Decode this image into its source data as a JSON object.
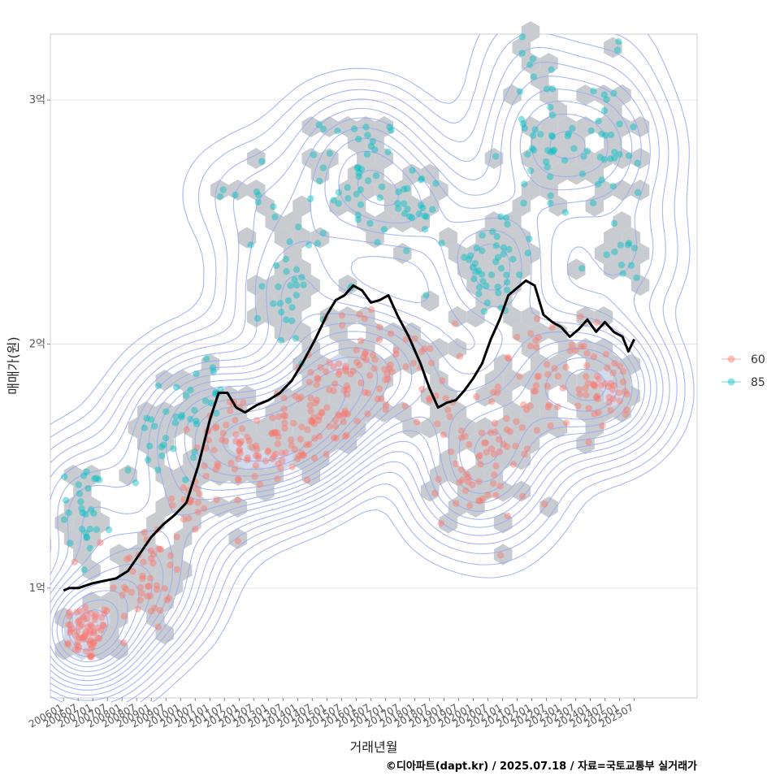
{
  "chart_data": {
    "type": "scatter",
    "xlabel": "거래년월",
    "ylabel": "매매가(원)",
    "caption": "©디아파트(dapt.kr) / 2025.07.18 / 자료=국토교통부 실거래가",
    "x_ticks": [
      "200601",
      "200607",
      "200701",
      "200707",
      "200801",
      "200807",
      "200901",
      "200907",
      "201001",
      "201007",
      "201101",
      "201107",
      "201201",
      "201207",
      "201301",
      "201307",
      "201401",
      "201407",
      "201501",
      "201507",
      "201601",
      "201607",
      "201701",
      "201707",
      "201801",
      "201807",
      "201901",
      "201907",
      "202001",
      "202007",
      "202101",
      "202107",
      "202201",
      "202207",
      "202301",
      "202307",
      "202401",
      "202407",
      "202501",
      "202507"
    ],
    "y_ticks": [
      {
        "value": 1.0,
        "label": "1억"
      },
      {
        "value": 2.0,
        "label": "2억"
      },
      {
        "value": 3.0,
        "label": "3억"
      }
    ],
    "xlim": [
      2005.55,
      2027.65
    ],
    "ylim": [
      0.55,
      3.27
    ],
    "grid": true,
    "legend": {
      "position": "right",
      "entries": [
        {
          "name": "60",
          "color": "#F8766D"
        },
        {
          "name": "85",
          "color": "#00BFC4"
        }
      ]
    },
    "series": [
      {
        "name": "60",
        "color": "#F8766D",
        "clusters": [
          {
            "x": 2006.8,
            "y": 0.82,
            "sx": 0.45,
            "sy": 0.06,
            "n": 70
          },
          {
            "x": 2008.8,
            "y": 1.05,
            "sx": 0.6,
            "sy": 0.12,
            "n": 45
          },
          {
            "x": 2010.3,
            "y": 1.35,
            "sx": 0.4,
            "sy": 0.08,
            "n": 20
          },
          {
            "x": 2011.5,
            "y": 1.62,
            "sx": 0.6,
            "sy": 0.1,
            "n": 30
          },
          {
            "x": 2013.2,
            "y": 1.57,
            "sx": 0.8,
            "sy": 0.09,
            "n": 65
          },
          {
            "x": 2014.6,
            "y": 1.7,
            "sx": 0.6,
            "sy": 0.08,
            "n": 40
          },
          {
            "x": 2016.3,
            "y": 1.9,
            "sx": 0.9,
            "sy": 0.12,
            "n": 70
          },
          {
            "x": 2018.6,
            "y": 1.85,
            "sx": 0.4,
            "sy": 0.12,
            "n": 20
          },
          {
            "x": 2020.2,
            "y": 1.48,
            "sx": 0.8,
            "sy": 0.12,
            "n": 55
          },
          {
            "x": 2022.5,
            "y": 1.85,
            "sx": 0.8,
            "sy": 0.12,
            "n": 50
          },
          {
            "x": 2024.6,
            "y": 1.8,
            "sx": 0.7,
            "sy": 0.08,
            "n": 45
          }
        ]
      },
      {
        "name": "85",
        "color": "#00BFC4",
        "clusters": [
          {
            "x": 2006.7,
            "y": 1.35,
            "sx": 0.5,
            "sy": 0.1,
            "n": 35
          },
          {
            "x": 2009.5,
            "y": 1.62,
            "sx": 0.5,
            "sy": 0.1,
            "n": 25
          },
          {
            "x": 2010.8,
            "y": 1.8,
            "sx": 0.4,
            "sy": 0.07,
            "n": 15
          },
          {
            "x": 2012.3,
            "y": 2.6,
            "sx": 0.6,
            "sy": 0.1,
            "n": 10
          },
          {
            "x": 2014.0,
            "y": 2.25,
            "sx": 0.6,
            "sy": 0.15,
            "n": 30
          },
          {
            "x": 2016.2,
            "y": 2.7,
            "sx": 0.7,
            "sy": 0.12,
            "n": 45
          },
          {
            "x": 2017.7,
            "y": 2.5,
            "sx": 0.5,
            "sy": 0.1,
            "n": 20
          },
          {
            "x": 2020.6,
            "y": 2.3,
            "sx": 0.7,
            "sy": 0.1,
            "n": 40
          },
          {
            "x": 2022.4,
            "y": 2.85,
            "sx": 0.7,
            "sy": 0.17,
            "n": 45
          },
          {
            "x": 2024.5,
            "y": 2.75,
            "sx": 0.5,
            "sy": 0.2,
            "n": 30
          },
          {
            "x": 2025.2,
            "y": 2.4,
            "sx": 0.3,
            "sy": 0.08,
            "n": 12
          }
        ]
      }
    ],
    "trend_line": {
      "color": "#000000",
      "points": [
        [
          2006.0,
          0.99
        ],
        [
          2006.2,
          1.0
        ],
        [
          2006.5,
          1.0
        ],
        [
          2007.0,
          1.02
        ],
        [
          2007.4,
          1.03
        ],
        [
          2007.8,
          1.04
        ],
        [
          2008.2,
          1.07
        ],
        [
          2008.6,
          1.14
        ],
        [
          2009.0,
          1.21
        ],
        [
          2009.4,
          1.26
        ],
        [
          2009.8,
          1.3
        ],
        [
          2010.2,
          1.35
        ],
        [
          2010.6,
          1.5
        ],
        [
          2011.0,
          1.69
        ],
        [
          2011.3,
          1.8
        ],
        [
          2011.6,
          1.8
        ],
        [
          2011.9,
          1.74
        ],
        [
          2012.2,
          1.72
        ],
        [
          2012.6,
          1.75
        ],
        [
          2013.0,
          1.77
        ],
        [
          2013.4,
          1.8
        ],
        [
          2013.8,
          1.85
        ],
        [
          2014.2,
          1.93
        ],
        [
          2014.6,
          2.02
        ],
        [
          2015.0,
          2.12
        ],
        [
          2015.3,
          2.18
        ],
        [
          2015.6,
          2.2
        ],
        [
          2015.9,
          2.24
        ],
        [
          2016.2,
          2.22
        ],
        [
          2016.5,
          2.17
        ],
        [
          2016.8,
          2.18
        ],
        [
          2017.1,
          2.2
        ],
        [
          2017.4,
          2.12
        ],
        [
          2017.8,
          2.03
        ],
        [
          2018.2,
          1.92
        ],
        [
          2018.5,
          1.82
        ],
        [
          2018.8,
          1.74
        ],
        [
          2019.1,
          1.76
        ],
        [
          2019.4,
          1.77
        ],
        [
          2019.7,
          1.81
        ],
        [
          2020.0,
          1.86
        ],
        [
          2020.3,
          1.92
        ],
        [
          2020.6,
          2.02
        ],
        [
          2020.9,
          2.1
        ],
        [
          2021.2,
          2.2
        ],
        [
          2021.5,
          2.23
        ],
        [
          2021.8,
          2.26
        ],
        [
          2022.1,
          2.24
        ],
        [
          2022.4,
          2.12
        ],
        [
          2022.7,
          2.09
        ],
        [
          2023.0,
          2.07
        ],
        [
          2023.3,
          2.03
        ],
        [
          2023.6,
          2.06
        ],
        [
          2023.9,
          2.1
        ],
        [
          2024.2,
          2.05
        ],
        [
          2024.5,
          2.09
        ],
        [
          2024.8,
          2.05
        ],
        [
          2025.1,
          2.03
        ],
        [
          2025.3,
          1.97
        ],
        [
          2025.5,
          2.02
        ]
      ]
    },
    "density_contours": {
      "color": "#9AAAF0",
      "levels": 16
    },
    "hexbin": {
      "color": "#C5C9CE"
    }
  }
}
